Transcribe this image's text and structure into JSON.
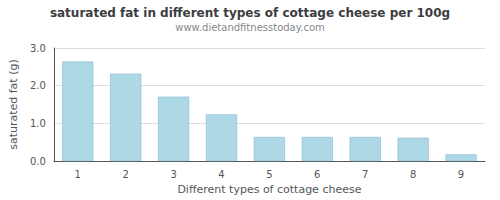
{
  "chart_data": {
    "type": "bar",
    "title": "saturated fat in different types of cottage cheese per 100g",
    "subtitle": "www.dietandfitnesstoday.com",
    "xlabel": "Different types of cottage cheese",
    "ylabel": "saturated fat (g)",
    "categories": [
      1,
      2,
      3,
      4,
      5,
      6,
      7,
      8,
      9
    ],
    "values": [
      2.64,
      2.32,
      1.71,
      1.24,
      0.64,
      0.64,
      0.64,
      0.62,
      0.18
    ],
    "color": "#add8e6",
    "ylim": [
      0,
      3.0
    ],
    "yticks": [
      {
        "value": 0.0,
        "label": "0.0"
      },
      {
        "value": 1.0,
        "label": "1.0"
      },
      {
        "value": 2.0,
        "label": "2.0"
      },
      {
        "value": 3.0,
        "label": "3.0"
      }
    ],
    "grid": true
  }
}
